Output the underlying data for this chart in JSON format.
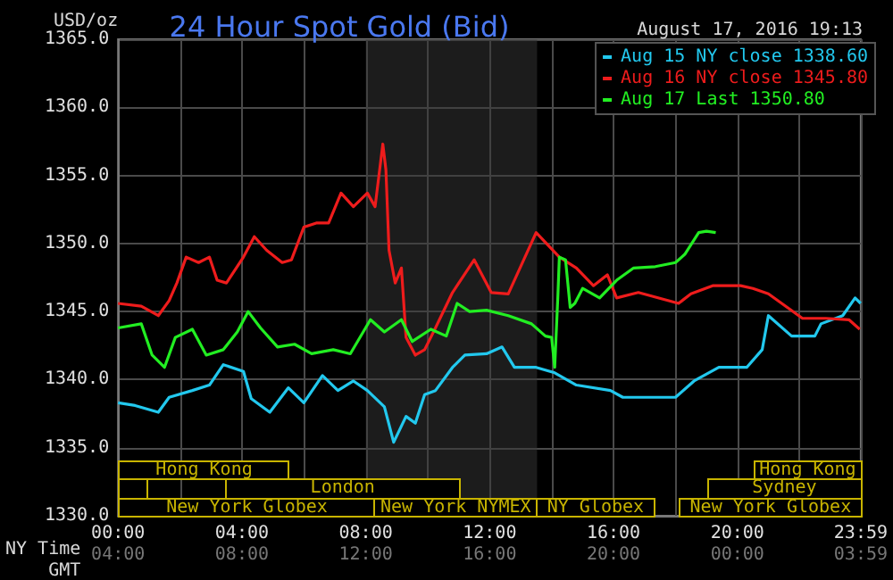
{
  "chart_data": {
    "type": "line",
    "title": "24 Hour Spot Gold (Bid)",
    "subtitle": "August 17, 2016 19:13",
    "xlabel": "NY Time",
    "x2label": "GMT",
    "ylabel": "USD/oz",
    "xlim": [
      0,
      23.983
    ],
    "xticks": [
      {
        "value": 0,
        "label": "00:00"
      },
      {
        "value": 2,
        "label": null
      },
      {
        "value": 4,
        "label": "04:00"
      },
      {
        "value": 6,
        "label": null
      },
      {
        "value": 8,
        "label": "08:00"
      },
      {
        "value": 10,
        "label": null
      },
      {
        "value": 12,
        "label": "12:00"
      },
      {
        "value": 14,
        "label": null
      },
      {
        "value": 16,
        "label": "16:00"
      },
      {
        "value": 18,
        "label": null
      },
      {
        "value": 20,
        "label": "20:00"
      },
      {
        "value": 22,
        "label": null
      },
      {
        "value": 23.983,
        "label": "23:59"
      }
    ],
    "x2lim": [
      "2016-08-17T04:00",
      "2016-08-18T03:59"
    ],
    "x2ticks": [
      {
        "value": "2016-08-17T04:00",
        "label": "04:00"
      },
      {
        "value": "2016-08-17T08:00",
        "label": "08:00"
      },
      {
        "value": "2016-08-17T12:00",
        "label": "12:00"
      },
      {
        "value": "2016-08-17T16:00",
        "label": "16:00"
      },
      {
        "value": "2016-08-17T20:00",
        "label": "20:00"
      },
      {
        "value": "2016-08-18T00:00",
        "label": "00:00"
      },
      {
        "value": "2016-08-18T03:59",
        "label": "03:59"
      }
    ],
    "ylim": [
      1330,
      1365
    ],
    "yticks": [
      {
        "value": 1330,
        "label": "1330.0"
      },
      {
        "value": 1335,
        "label": "1335.0"
      },
      {
        "value": 1340,
        "label": "1340.0"
      },
      {
        "value": 1345,
        "label": "1345.0"
      },
      {
        "value": 1350,
        "label": "1350.0"
      },
      {
        "value": 1355,
        "label": "1355.0"
      },
      {
        "value": 1360,
        "label": "1360.0"
      },
      {
        "value": 1365,
        "label": "1365.0"
      }
    ],
    "grid": true,
    "legend": "top right",
    "series": [
      {
        "name": "Aug 15 NY close 1338.60",
        "color": "#22c8ee",
        "x": [
          0,
          0.55,
          1.3,
          1.65,
          2.4,
          2.95,
          3.4,
          4.05,
          4.3,
          4.9,
          5.5,
          6.0,
          6.6,
          7.1,
          7.6,
          8.05,
          8.6,
          8.9,
          9.3,
          9.6,
          9.9,
          10.25,
          10.8,
          11.2,
          11.9,
          12.4,
          12.8,
          13.5,
          14.1,
          14.8,
          15.9,
          16.3,
          18.0,
          18.6,
          19.4,
          20.3,
          20.8,
          21.0,
          21.75,
          22.5,
          22.7,
          23.4,
          23.8,
          23.98
        ],
        "values": [
          1338.3,
          1338.1,
          1337.6,
          1338.7,
          1339.2,
          1339.6,
          1341.1,
          1340.6,
          1338.6,
          1337.6,
          1339.4,
          1338.3,
          1340.3,
          1339.2,
          1339.9,
          1339.2,
          1338.0,
          1335.4,
          1337.3,
          1336.8,
          1338.9,
          1339.2,
          1340.9,
          1341.8,
          1341.9,
          1342.4,
          1340.9,
          1340.9,
          1340.5,
          1339.6,
          1339.2,
          1338.7,
          1338.7,
          1339.9,
          1340.9,
          1340.9,
          1342.2,
          1344.7,
          1343.2,
          1343.2,
          1344.1,
          1344.7,
          1346.0,
          1345.6
        ]
      },
      {
        "name": "Aug 16 NY close 1345.80",
        "color": "#ee1c1c",
        "x": [
          0,
          0.75,
          1.3,
          1.65,
          1.9,
          2.2,
          2.6,
          2.95,
          3.2,
          3.5,
          4.05,
          4.4,
          4.8,
          5.3,
          5.6,
          6.0,
          6.4,
          6.8,
          7.2,
          7.6,
          8.05,
          8.3,
          8.55,
          8.65,
          8.75,
          8.95,
          9.15,
          9.3,
          9.6,
          9.9,
          10.25,
          10.8,
          11.5,
          12.05,
          12.6,
          13.5,
          14.25,
          14.8,
          15.35,
          15.8,
          16.1,
          16.8,
          18.1,
          18.5,
          19.2,
          20.1,
          20.5,
          21.0,
          22.1,
          22.85,
          23.6,
          23.95
        ],
        "values": [
          1345.6,
          1345.4,
          1344.7,
          1345.8,
          1347.1,
          1349.0,
          1348.6,
          1349.0,
          1347.3,
          1347.1,
          1349.0,
          1350.5,
          1349.5,
          1348.6,
          1348.8,
          1351.2,
          1351.5,
          1351.5,
          1353.7,
          1352.7,
          1353.7,
          1352.7,
          1357.3,
          1355.4,
          1349.5,
          1347.1,
          1348.2,
          1343.1,
          1341.8,
          1342.2,
          1343.8,
          1346.4,
          1348.8,
          1346.4,
          1346.3,
          1350.8,
          1349.0,
          1348.2,
          1346.9,
          1347.7,
          1346.0,
          1346.4,
          1345.6,
          1346.3,
          1346.9,
          1346.9,
          1346.7,
          1346.3,
          1344.5,
          1344.5,
          1344.4,
          1343.7
        ]
      },
      {
        "name": "Aug 17 Last 1350.80",
        "color": "#22ee22",
        "x": [
          0,
          0.75,
          1.1,
          1.5,
          1.85,
          2.4,
          2.85,
          3.4,
          3.85,
          4.2,
          4.6,
          5.15,
          5.7,
          6.25,
          6.95,
          7.5,
          8.15,
          8.6,
          9.15,
          9.5,
          10.1,
          10.6,
          10.95,
          11.35,
          11.9,
          12.6,
          13.35,
          13.8,
          14.0,
          14.1,
          14.2,
          14.25,
          14.45,
          14.6,
          14.75,
          15.0,
          15.55,
          16.1,
          16.65,
          17.35,
          18.0,
          18.3,
          18.75,
          19.0,
          19.3
        ],
        "values": [
          1343.8,
          1344.1,
          1341.8,
          1340.9,
          1343.1,
          1343.7,
          1341.8,
          1342.2,
          1343.5,
          1345.0,
          1343.8,
          1342.4,
          1342.6,
          1341.9,
          1342.2,
          1341.9,
          1344.4,
          1343.5,
          1344.4,
          1342.8,
          1343.7,
          1343.2,
          1345.6,
          1345.0,
          1345.1,
          1344.7,
          1344.1,
          1343.2,
          1343.1,
          1340.9,
          1346.0,
          1349.0,
          1348.8,
          1345.3,
          1345.6,
          1346.7,
          1346.0,
          1347.3,
          1348.2,
          1348.3,
          1348.6,
          1349.2,
          1350.8,
          1350.9,
          1350.8
        ]
      }
    ],
    "bands": [
      {
        "axis": "x",
        "from": 8,
        "to": 13.53,
        "color": "#383838"
      }
    ],
    "annotations": [
      "Hong Kong",
      "Hong Kong",
      "London",
      "Sydney",
      "New York Globex",
      "New York NYMEX",
      "NY Globex",
      "New York Globex"
    ]
  }
}
